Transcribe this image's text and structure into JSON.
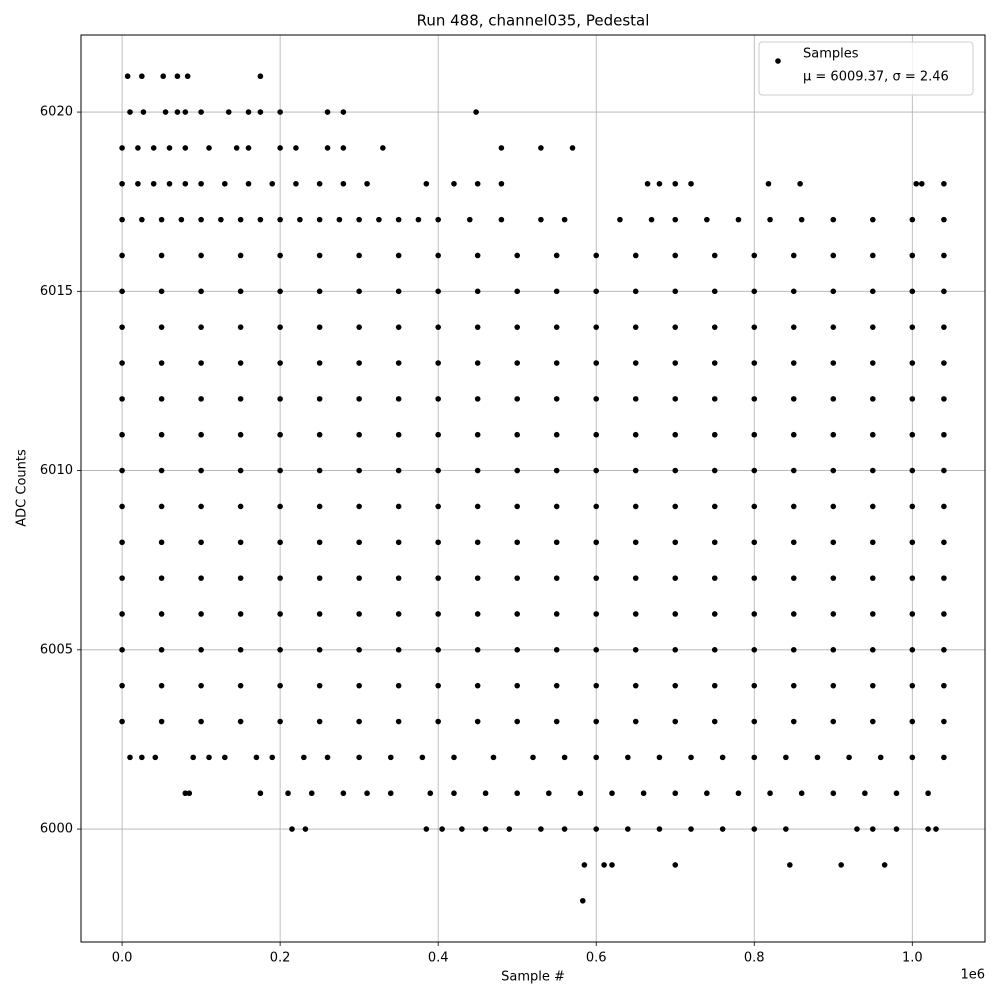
{
  "chart_data": {
    "type": "scatter",
    "title": "Run 488, channel035, Pedestal",
    "x_label": "Sample #",
    "y_label": "ADC Counts",
    "x_offset_label": "1e6",
    "legend_note": "μ = 6009.37, σ = 2.46",
    "legend_position": "upper right",
    "grid": true,
    "xlim": [
      -52000,
      1092000
    ],
    "ylim": [
      5996.85,
      6022.15
    ],
    "xticks": [
      {
        "value": 0,
        "label": "0.0"
      },
      {
        "value": 200000,
        "label": "0.2"
      },
      {
        "value": 400000,
        "label": "0.4"
      },
      {
        "value": 600000,
        "label": "0.6"
      },
      {
        "value": 800000,
        "label": "0.8"
      },
      {
        "value": 1000000,
        "label": "1.0"
      }
    ],
    "yticks": [
      6000,
      6005,
      6010,
      6015,
      6020
    ],
    "series": [
      {
        "name": "Samples",
        "color": "#000000",
        "x": [
          0,
          50000,
          100000,
          150000,
          200000,
          250000,
          300000,
          350000,
          400000,
          450000,
          500000,
          550000,
          600000,
          650000,
          700000,
          750000,
          800000,
          850000,
          900000,
          950000,
          1000000,
          1040000,
          0,
          50000,
          100000,
          150000,
          200000,
          250000,
          300000,
          350000,
          400000,
          450000,
          500000,
          550000,
          600000,
          650000,
          700000,
          750000,
          800000,
          850000,
          900000,
          950000,
          1000000,
          1040000,
          0,
          50000,
          100000,
          150000,
          200000,
          250000,
          300000,
          350000,
          400000,
          450000,
          500000,
          550000,
          600000,
          650000,
          700000,
          750000,
          800000,
          850000,
          900000,
          950000,
          1000000,
          1040000,
          0,
          50000,
          100000,
          150000,
          200000,
          250000,
          300000,
          350000,
          400000,
          450000,
          500000,
          550000,
          600000,
          650000,
          700000,
          750000,
          800000,
          850000,
          900000,
          950000,
          1000000,
          1040000,
          0,
          50000,
          100000,
          150000,
          200000,
          250000,
          300000,
          350000,
          400000,
          450000,
          500000,
          550000,
          600000,
          650000,
          700000,
          750000,
          800000,
          850000,
          900000,
          950000,
          1000000,
          1040000,
          0,
          50000,
          100000,
          150000,
          200000,
          250000,
          300000,
          350000,
          400000,
          450000,
          500000,
          550000,
          600000,
          650000,
          700000,
          750000,
          800000,
          850000,
          900000,
          950000,
          1000000,
          1040000,
          0,
          50000,
          100000,
          150000,
          200000,
          250000,
          300000,
          350000,
          400000,
          450000,
          500000,
          550000,
          600000,
          650000,
          700000,
          750000,
          800000,
          850000,
          900000,
          950000,
          1000000,
          1040000,
          0,
          50000,
          100000,
          150000,
          200000,
          250000,
          300000,
          350000,
          400000,
          450000,
          500000,
          550000,
          600000,
          650000,
          700000,
          750000,
          800000,
          850000,
          900000,
          950000,
          1000000,
          1040000,
          0,
          50000,
          100000,
          150000,
          200000,
          250000,
          300000,
          350000,
          400000,
          450000,
          500000,
          550000,
          600000,
          650000,
          700000,
          750000,
          800000,
          850000,
          900000,
          950000,
          1000000,
          1040000,
          0,
          50000,
          100000,
          150000,
          200000,
          250000,
          300000,
          350000,
          400000,
          450000,
          500000,
          550000,
          600000,
          650000,
          700000,
          750000,
          800000,
          850000,
          900000,
          950000,
          1000000,
          1040000,
          0,
          50000,
          100000,
          150000,
          200000,
          250000,
          300000,
          350000,
          400000,
          450000,
          500000,
          550000,
          600000,
          650000,
          700000,
          750000,
          800000,
          850000,
          900000,
          950000,
          1000000,
          1040000,
          0,
          50000,
          100000,
          150000,
          200000,
          250000,
          300000,
          350000,
          400000,
          450000,
          500000,
          550000,
          600000,
          650000,
          700000,
          750000,
          800000,
          850000,
          900000,
          950000,
          1000000,
          1040000,
          0,
          50000,
          100000,
          150000,
          200000,
          250000,
          300000,
          350000,
          400000,
          450000,
          500000,
          550000,
          600000,
          650000,
          700000,
          750000,
          800000,
          850000,
          900000,
          950000,
          1000000,
          1040000,
          0,
          50000,
          100000,
          150000,
          200000,
          250000,
          300000,
          350000,
          400000,
          450000,
          500000,
          550000,
          600000,
          650000,
          700000,
          750000,
          800000,
          850000,
          900000,
          950000,
          1000000,
          1040000,
          10000,
          25000,
          42000,
          90000,
          110000,
          130000,
          170000,
          190000,
          230000,
          260000,
          300000,
          340000,
          380000,
          420000,
          470000,
          520000,
          560000,
          600000,
          640000,
          680000,
          720000,
          760000,
          800000,
          840000,
          880000,
          920000,
          960000,
          1000000,
          1040000,
          80000,
          85000,
          175000,
          210000,
          240000,
          280000,
          310000,
          340000,
          390000,
          420000,
          460000,
          500000,
          540000,
          580000,
          620000,
          660000,
          700000,
          740000,
          780000,
          820000,
          860000,
          900000,
          940000,
          980000,
          1020000,
          215000,
          232000,
          385000,
          405000,
          430000,
          460000,
          490000,
          530000,
          560000,
          600000,
          640000,
          680000,
          720000,
          760000,
          800000,
          840000,
          930000,
          950000,
          980000,
          1020000,
          1030000,
          585000,
          610000,
          620000,
          700000,
          845000,
          910000,
          965000,
          583000,
          0,
          25000,
          50000,
          75000,
          100000,
          125000,
          150000,
          175000,
          200000,
          225000,
          250000,
          275000,
          300000,
          325000,
          350000,
          375000,
          400000,
          440000,
          480000,
          530000,
          560000,
          630000,
          670000,
          700000,
          740000,
          780000,
          820000,
          860000,
          900000,
          950000,
          1000000,
          1040000,
          0,
          20000,
          40000,
          60000,
          80000,
          100000,
          130000,
          160000,
          190000,
          220000,
          250000,
          280000,
          310000,
          385000,
          420000,
          450000,
          480000,
          665000,
          680000,
          700000,
          720000,
          818000,
          858000,
          1005000,
          1012000,
          1040000,
          0,
          20000,
          40000,
          60000,
          80000,
          110000,
          145000,
          160000,
          200000,
          220000,
          260000,
          280000,
          330000,
          480000,
          530000,
          570000,
          10000,
          27000,
          55000,
          70000,
          80000,
          100000,
          135000,
          160000,
          175000,
          200000,
          260000,
          280000,
          448000,
          7000,
          25000,
          52000,
          70000,
          83000,
          175000
        ],
        "values": [
          6003,
          6003,
          6003,
          6003,
          6003,
          6003,
          6003,
          6003,
          6003,
          6003,
          6003,
          6003,
          6003,
          6003,
          6003,
          6003,
          6003,
          6003,
          6003,
          6003,
          6003,
          6003,
          6004,
          6004,
          6004,
          6004,
          6004,
          6004,
          6004,
          6004,
          6004,
          6004,
          6004,
          6004,
          6004,
          6004,
          6004,
          6004,
          6004,
          6004,
          6004,
          6004,
          6004,
          6004,
          6005,
          6005,
          6005,
          6005,
          6005,
          6005,
          6005,
          6005,
          6005,
          6005,
          6005,
          6005,
          6005,
          6005,
          6005,
          6005,
          6005,
          6005,
          6005,
          6005,
          6005,
          6005,
          6006,
          6006,
          6006,
          6006,
          6006,
          6006,
          6006,
          6006,
          6006,
          6006,
          6006,
          6006,
          6006,
          6006,
          6006,
          6006,
          6006,
          6006,
          6006,
          6006,
          6006,
          6006,
          6007,
          6007,
          6007,
          6007,
          6007,
          6007,
          6007,
          6007,
          6007,
          6007,
          6007,
          6007,
          6007,
          6007,
          6007,
          6007,
          6007,
          6007,
          6007,
          6007,
          6007,
          6007,
          6008,
          6008,
          6008,
          6008,
          6008,
          6008,
          6008,
          6008,
          6008,
          6008,
          6008,
          6008,
          6008,
          6008,
          6008,
          6008,
          6008,
          6008,
          6008,
          6008,
          6008,
          6008,
          6009,
          6009,
          6009,
          6009,
          6009,
          6009,
          6009,
          6009,
          6009,
          6009,
          6009,
          6009,
          6009,
          6009,
          6009,
          6009,
          6009,
          6009,
          6009,
          6009,
          6009,
          6009,
          6010,
          6010,
          6010,
          6010,
          6010,
          6010,
          6010,
          6010,
          6010,
          6010,
          6010,
          6010,
          6010,
          6010,
          6010,
          6010,
          6010,
          6010,
          6010,
          6010,
          6010,
          6010,
          6011,
          6011,
          6011,
          6011,
          6011,
          6011,
          6011,
          6011,
          6011,
          6011,
          6011,
          6011,
          6011,
          6011,
          6011,
          6011,
          6011,
          6011,
          6011,
          6011,
          6011,
          6011,
          6012,
          6012,
          6012,
          6012,
          6012,
          6012,
          6012,
          6012,
          6012,
          6012,
          6012,
          6012,
          6012,
          6012,
          6012,
          6012,
          6012,
          6012,
          6012,
          6012,
          6012,
          6012,
          6013,
          6013,
          6013,
          6013,
          6013,
          6013,
          6013,
          6013,
          6013,
          6013,
          6013,
          6013,
          6013,
          6013,
          6013,
          6013,
          6013,
          6013,
          6013,
          6013,
          6013,
          6013,
          6014,
          6014,
          6014,
          6014,
          6014,
          6014,
          6014,
          6014,
          6014,
          6014,
          6014,
          6014,
          6014,
          6014,
          6014,
          6014,
          6014,
          6014,
          6014,
          6014,
          6014,
          6014,
          6015,
          6015,
          6015,
          6015,
          6015,
          6015,
          6015,
          6015,
          6015,
          6015,
          6015,
          6015,
          6015,
          6015,
          6015,
          6015,
          6015,
          6015,
          6015,
          6015,
          6015,
          6015,
          6016,
          6016,
          6016,
          6016,
          6016,
          6016,
          6016,
          6016,
          6016,
          6016,
          6016,
          6016,
          6016,
          6016,
          6016,
          6016,
          6016,
          6016,
          6016,
          6016,
          6016,
          6016,
          6002,
          6002,
          6002,
          6002,
          6002,
          6002,
          6002,
          6002,
          6002,
          6002,
          6002,
          6002,
          6002,
          6002,
          6002,
          6002,
          6002,
          6002,
          6002,
          6002,
          6002,
          6002,
          6002,
          6002,
          6002,
          6002,
          6002,
          6002,
          6002,
          6001,
          6001,
          6001,
          6001,
          6001,
          6001,
          6001,
          6001,
          6001,
          6001,
          6001,
          6001,
          6001,
          6001,
          6001,
          6001,
          6001,
          6001,
          6001,
          6001,
          6001,
          6001,
          6001,
          6001,
          6001,
          6000,
          6000,
          6000,
          6000,
          6000,
          6000,
          6000,
          6000,
          6000,
          6000,
          6000,
          6000,
          6000,
          6000,
          6000,
          6000,
          6000,
          6000,
          6000,
          6000,
          6000,
          5999,
          5999,
          5999,
          5999,
          5999,
          5999,
          5999,
          5998,
          6017,
          6017,
          6017,
          6017,
          6017,
          6017,
          6017,
          6017,
          6017,
          6017,
          6017,
          6017,
          6017,
          6017,
          6017,
          6017,
          6017,
          6017,
          6017,
          6017,
          6017,
          6017,
          6017,
          6017,
          6017,
          6017,
          6017,
          6017,
          6017,
          6017,
          6017,
          6017,
          6018,
          6018,
          6018,
          6018,
          6018,
          6018,
          6018,
          6018,
          6018,
          6018,
          6018,
          6018,
          6018,
          6018,
          6018,
          6018,
          6018,
          6018,
          6018,
          6018,
          6018,
          6018,
          6018,
          6018,
          6018,
          6018,
          6019,
          6019,
          6019,
          6019,
          6019,
          6019,
          6019,
          6019,
          6019,
          6019,
          6019,
          6019,
          6019,
          6019,
          6019,
          6019,
          6020,
          6020,
          6020,
          6020,
          6020,
          6020,
          6020,
          6020,
          6020,
          6020,
          6020,
          6020,
          6020,
          6021,
          6021,
          6021,
          6021,
          6021,
          6021
        ]
      }
    ]
  }
}
